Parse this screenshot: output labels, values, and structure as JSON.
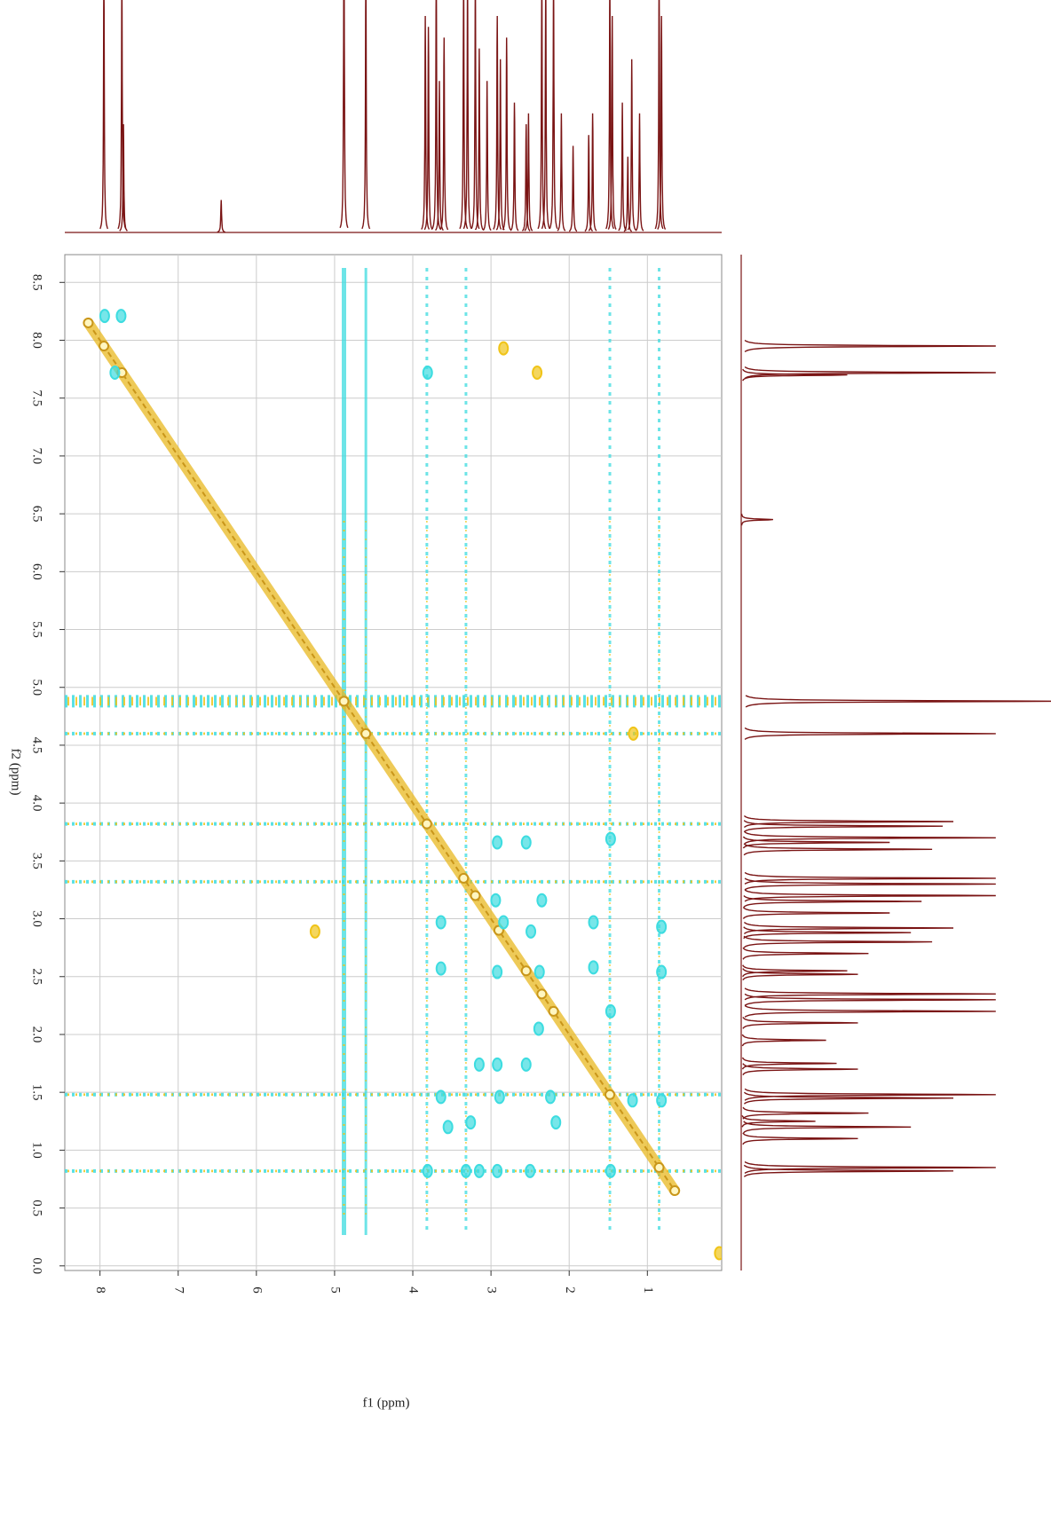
{
  "chart_data": {
    "type": "contour",
    "xlabel": "f1 (ppm)",
    "ylabel": "f2 (ppm)",
    "xlim": [
      8.45,
      0.05
    ],
    "ylim": [
      -0.04,
      8.74
    ],
    "xticks": [
      8,
      7,
      6,
      5,
      4,
      3,
      2,
      1
    ],
    "yticks": [
      {
        "value": 0,
        "label": "0.0"
      },
      0.5,
      {
        "value": 1,
        "label": "1.0"
      },
      1.5,
      {
        "value": 2,
        "label": "2.0"
      },
      2.5,
      {
        "value": 3,
        "label": "3.0"
      },
      3.5,
      {
        "value": 4,
        "label": "4.0"
      },
      4.5,
      {
        "value": 5,
        "label": "5.0"
      },
      5.5,
      {
        "value": 6,
        "label": "6.0"
      },
      6.5,
      {
        "value": 7,
        "label": "7.0"
      },
      7.5,
      {
        "value": 8,
        "label": "8.0"
      },
      8.5
    ],
    "grid": true,
    "diagonal": {
      "color": "#e8b820",
      "x": [
        8.15,
        7.95,
        7.72,
        4.88,
        4.6,
        3.82,
        3.35,
        3.2,
        2.9,
        2.55,
        2.35,
        2.2,
        1.48,
        0.85,
        0.65
      ],
      "y": [
        8.15,
        7.95,
        7.72,
        4.88,
        4.6,
        3.82,
        3.35,
        3.2,
        2.9,
        2.55,
        2.35,
        2.2,
        1.48,
        0.85,
        0.65
      ]
    },
    "negative_peaks": {
      "color": "#3ddce0",
      "x": [
        7.94,
        7.73,
        7.81,
        3.81,
        2.92,
        2.55,
        1.47,
        2.94,
        2.35,
        3.64,
        2.84,
        2.49,
        1.69,
        0.82,
        3.64,
        2.92,
        2.38,
        1.69,
        0.82,
        2.39,
        1.47,
        2.55,
        2.92,
        3.15,
        3.64,
        2.89,
        2.24,
        3.55,
        3.26,
        2.17,
        3.32,
        3.15,
        2.92,
        2.5,
        0.82,
        1.47,
        3.81,
        1.19
      ],
      "y": [
        8.21,
        8.21,
        7.72,
        7.72,
        3.66,
        3.66,
        3.69,
        3.16,
        3.16,
        2.97,
        2.97,
        2.89,
        2.97,
        2.93,
        2.57,
        2.54,
        2.54,
        2.58,
        2.54,
        2.05,
        2.2,
        1.74,
        1.74,
        1.74,
        1.46,
        1.46,
        1.46,
        1.2,
        1.24,
        1.24,
        0.82,
        0.82,
        0.82,
        0.82,
        1.43,
        0.82,
        0.82,
        1.43
      ]
    },
    "positive_peaks": {
      "color": "#f0c419",
      "x": [
        2.84,
        2.41,
        5.25,
        1.18,
        0.08
      ],
      "y": [
        7.93,
        7.72,
        2.89,
        4.6,
        0.11
      ]
    },
    "streaks": {
      "colors": [
        "#3ddce0",
        "#f0c419"
      ],
      "horizontal": [
        4.88,
        4.6,
        3.82,
        3.32,
        1.48,
        0.82
      ],
      "vertical": [
        4.88,
        4.6,
        3.82,
        3.32,
        1.48,
        0.85
      ]
    },
    "projection": {
      "color": "#7a1414",
      "ppm": [
        7.95,
        7.72,
        7.7,
        6.45,
        4.88,
        4.6,
        3.84,
        3.8,
        3.7,
        3.66,
        3.6,
        3.35,
        3.3,
        3.2,
        3.15,
        3.05,
        2.92,
        2.88,
        2.8,
        2.7,
        2.55,
        2.52,
        2.35,
        2.3,
        2.2,
        2.1,
        1.95,
        1.75,
        1.7,
        1.48,
        1.45,
        1.32,
        1.25,
        1.2,
        1.1,
        0.85,
        0.82
      ],
      "intensity": [
        1.2,
        1.2,
        0.5,
        0.15,
        1.5,
        1.2,
        1.0,
        0.95,
        1.2,
        0.7,
        0.9,
        1.2,
        1.2,
        1.2,
        0.85,
        0.7,
        1.0,
        0.8,
        0.9,
        0.6,
        0.5,
        0.55,
        1.2,
        1.2,
        1.2,
        0.55,
        0.4,
        0.45,
        0.55,
        1.2,
        1.0,
        0.6,
        0.35,
        0.8,
        0.55,
        1.2,
        1.0
      ]
    }
  }
}
